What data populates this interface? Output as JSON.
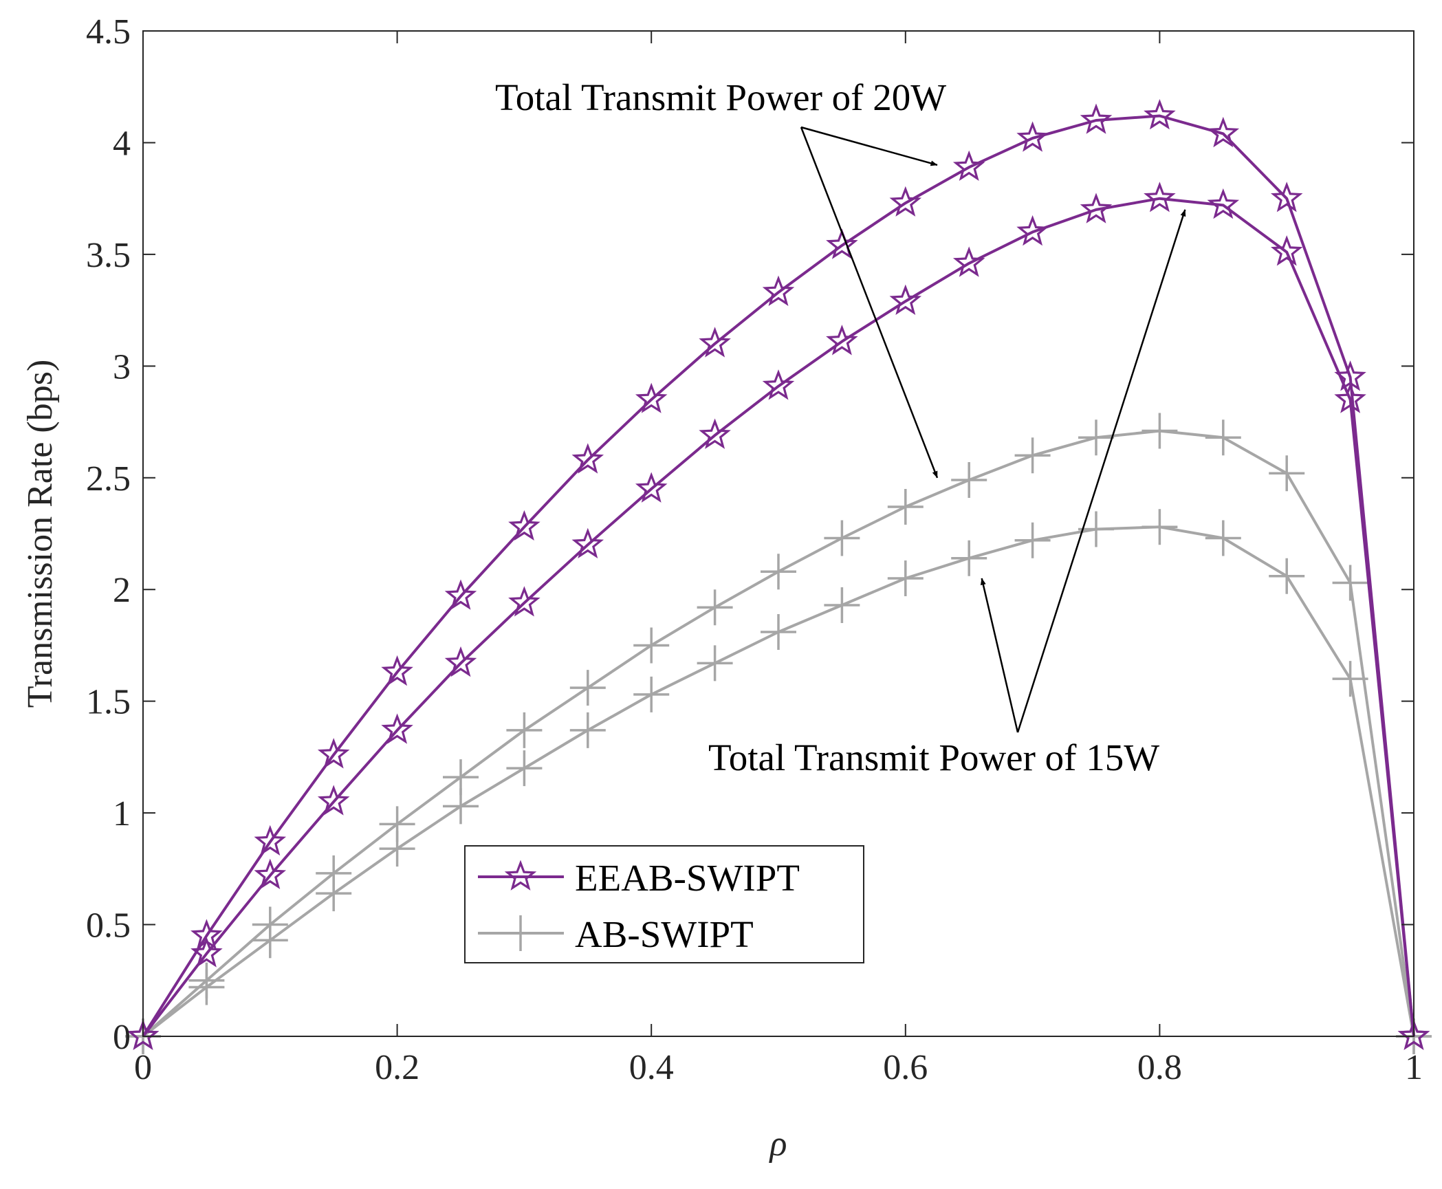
{
  "chart_data": {
    "type": "line",
    "title": "",
    "xlabel": "ρ",
    "ylabel": "Transmission Rate (bps)",
    "xlim": [
      0,
      1
    ],
    "ylim": [
      0,
      4.5
    ],
    "xticks": [
      0,
      0.2,
      0.4,
      0.6,
      0.8,
      1
    ],
    "xtick_labels": [
      "0",
      "0.2",
      "0.4",
      "0.6",
      "0.8",
      "1"
    ],
    "yticks": [
      0,
      0.5,
      1,
      1.5,
      2,
      2.5,
      3,
      3.5,
      4,
      4.5
    ],
    "ytick_labels": [
      "0",
      "0.5",
      "1",
      "1.5",
      "2",
      "2.5",
      "3",
      "3.5",
      "4",
      "4.5"
    ],
    "grid": false,
    "x": [
      0,
      0.05,
      0.1,
      0.15,
      0.2,
      0.25,
      0.3,
      0.35,
      0.4,
      0.45,
      0.5,
      0.55,
      0.6,
      0.65,
      0.7,
      0.75,
      0.8,
      0.85,
      0.9,
      0.95,
      1
    ],
    "series": [
      {
        "name": "EEAB-SWIPT (20W)",
        "legend_group": "EEAB-SWIPT",
        "marker": "star",
        "color": "#7b2a8e",
        "values": [
          0,
          0.45,
          0.87,
          1.26,
          1.63,
          1.97,
          2.28,
          2.58,
          2.85,
          3.1,
          3.33,
          3.54,
          3.73,
          3.89,
          4.02,
          4.1,
          4.12,
          4.04,
          3.75,
          2.95,
          0
        ]
      },
      {
        "name": "EEAB-SWIPT (15W)",
        "legend_group": "EEAB-SWIPT",
        "marker": "star",
        "color": "#7b2a8e",
        "values": [
          0,
          0.37,
          0.72,
          1.05,
          1.37,
          1.67,
          1.94,
          2.2,
          2.45,
          2.69,
          2.91,
          3.11,
          3.29,
          3.46,
          3.6,
          3.7,
          3.75,
          3.72,
          3.51,
          2.85,
          0
        ]
      },
      {
        "name": "AB-SWIPT (20W)",
        "legend_group": "AB-SWIPT",
        "marker": "plus",
        "color": "#a6a6a6",
        "values": [
          0,
          0.25,
          0.5,
          0.73,
          0.95,
          1.16,
          1.37,
          1.56,
          1.75,
          1.92,
          2.08,
          2.23,
          2.37,
          2.49,
          2.6,
          2.68,
          2.71,
          2.68,
          2.52,
          2.03,
          0
        ]
      },
      {
        "name": "AB-SWIPT (15W)",
        "legend_group": "AB-SWIPT",
        "marker": "plus",
        "color": "#a6a6a6",
        "values": [
          0,
          0.22,
          0.43,
          0.64,
          0.84,
          1.03,
          1.2,
          1.37,
          1.53,
          1.67,
          1.81,
          1.93,
          2.05,
          2.14,
          2.22,
          2.27,
          2.28,
          2.23,
          2.06,
          1.6,
          0
        ]
      }
    ],
    "legend": {
      "placement": "lower-center",
      "entries": [
        {
          "label": "EEAB-SWIPT",
          "marker": "star",
          "color": "#7b2a8e"
        },
        {
          "label": "AB-SWIPT",
          "marker": "plus",
          "color": "#a6a6a6"
        }
      ]
    },
    "annotations": [
      {
        "text": "Total Transmit Power of 20W",
        "arrows_to": [
          {
            "x": 0.625,
            "y": 3.9
          },
          {
            "x": 0.625,
            "y": 2.5
          }
        ]
      },
      {
        "text": "Total Transmit Power of 15W",
        "arrows_to": [
          {
            "x": 0.82,
            "y": 3.7
          },
          {
            "x": 0.66,
            "y": 2.05
          }
        ]
      }
    ]
  }
}
